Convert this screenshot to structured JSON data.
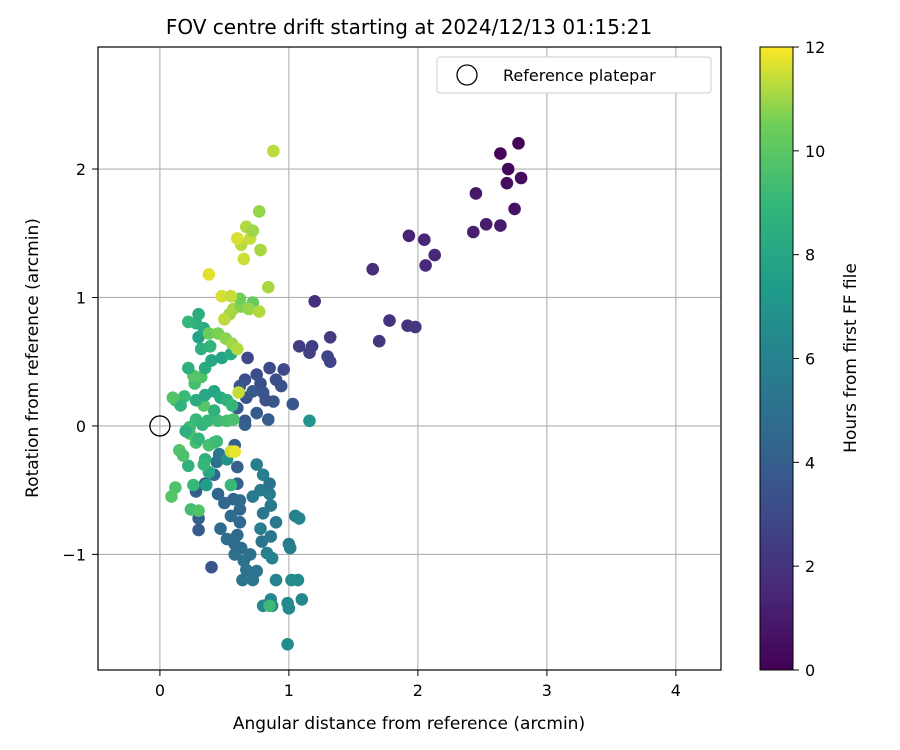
{
  "chart_data": {
    "type": "scatter",
    "title": "FOV centre drift starting at 2024/12/13 01:15:21",
    "xlabel": "Angular distance from reference (arcmin)",
    "ylabel": "Rotation from reference (arcmin)",
    "xlim": [
      -0.48,
      4.35
    ],
    "ylim": [
      -1.9,
      2.95
    ],
    "xticks": [
      0,
      1,
      2,
      3,
      4
    ],
    "yticks": [
      -1,
      0,
      1,
      2
    ],
    "xtick_labels": [
      "0",
      "1",
      "2",
      "3",
      "4"
    ],
    "ytick_labels": [
      "−1",
      "0",
      "1",
      "2"
    ],
    "grid": true,
    "legend": {
      "location": "top-right",
      "entries": [
        "Reference platepar"
      ]
    },
    "reference_point": {
      "x": 0,
      "y": 0
    },
    "colorbar": {
      "label": "Hours from first FF file",
      "colormap": "viridis",
      "range": [
        0,
        12
      ],
      "ticks": [
        0,
        2,
        4,
        6,
        8,
        10,
        12
      ],
      "tick_labels": [
        "0",
        "2",
        "4",
        "6",
        "8",
        "10",
        "12"
      ]
    },
    "series": [
      {
        "points": [
          [
            2.78,
            2.2,
            0.1
          ],
          [
            2.64,
            2.12,
            0.2
          ],
          [
            2.7,
            2.0,
            0.3
          ],
          [
            2.8,
            1.93,
            0.4
          ],
          [
            2.69,
            1.89,
            0.5
          ],
          [
            2.75,
            1.69,
            0.6
          ],
          [
            2.45,
            1.81,
            0.8
          ],
          [
            2.64,
            1.56,
            1.0
          ],
          [
            2.53,
            1.57,
            1.1
          ],
          [
            2.43,
            1.51,
            1.2
          ],
          [
            1.93,
            1.48,
            1.3
          ],
          [
            2.05,
            1.45,
            1.4
          ],
          [
            2.13,
            1.33,
            1.5
          ],
          [
            2.06,
            1.25,
            1.6
          ],
          [
            1.65,
            1.22,
            1.7
          ],
          [
            1.2,
            0.97,
            1.8
          ],
          [
            1.78,
            0.82,
            1.9
          ],
          [
            1.92,
            0.78,
            2.0
          ],
          [
            1.98,
            0.77,
            2.1
          ],
          [
            1.7,
            0.66,
            2.2
          ],
          [
            1.32,
            0.69,
            2.3
          ],
          [
            1.08,
            0.62,
            2.4
          ],
          [
            1.18,
            0.62,
            2.5
          ],
          [
            1.16,
            0.57,
            2.6
          ],
          [
            1.3,
            0.54,
            2.7
          ],
          [
            1.32,
            0.5,
            2.8
          ],
          [
            0.68,
            0.53,
            2.9
          ],
          [
            0.85,
            0.45,
            3.0
          ],
          [
            0.96,
            0.44,
            3.1
          ],
          [
            0.75,
            0.4,
            3.2
          ],
          [
            0.66,
            0.36,
            3.3
          ],
          [
            0.78,
            0.33,
            3.3
          ],
          [
            0.94,
            0.31,
            3.4
          ],
          [
            0.8,
            0.26,
            3.5
          ],
          [
            0.67,
            0.22,
            3.5
          ],
          [
            0.88,
            0.19,
            3.6
          ],
          [
            1.03,
            0.17,
            3.7
          ],
          [
            0.6,
            0.14,
            3.8
          ],
          [
            0.75,
            0.1,
            3.9
          ],
          [
            0.84,
            0.05,
            4.0
          ],
          [
            0.66,
            0.04,
            3.7
          ],
          [
            0.82,
            0.2,
            3.4
          ],
          [
            0.9,
            0.36,
            3.2
          ],
          [
            0.62,
            0.31,
            3.6
          ],
          [
            0.72,
            0.27,
            3.8
          ],
          [
            0.66,
            0.01,
            4.1
          ],
          [
            0.58,
            -0.15,
            4.1
          ],
          [
            0.6,
            -0.32,
            4.2
          ],
          [
            0.6,
            -0.45,
            4.3
          ],
          [
            0.45,
            -0.53,
            4.4
          ],
          [
            0.57,
            -0.57,
            4.4
          ],
          [
            0.5,
            -0.6,
            4.5
          ],
          [
            0.62,
            -0.65,
            4.5
          ],
          [
            0.55,
            -0.7,
            4.6
          ],
          [
            0.62,
            -0.75,
            4.6
          ],
          [
            0.47,
            -0.8,
            4.7
          ],
          [
            0.6,
            -0.85,
            4.7
          ],
          [
            0.52,
            -0.88,
            4.8
          ],
          [
            0.58,
            -0.92,
            4.8
          ],
          [
            0.63,
            -0.95,
            4.9
          ],
          [
            0.58,
            -1.0,
            4.9
          ],
          [
            0.65,
            -1.05,
            5.0
          ],
          [
            0.7,
            -1.0,
            5.0
          ],
          [
            0.4,
            -1.1,
            3.6
          ],
          [
            0.67,
            -1.12,
            5.1
          ],
          [
            0.75,
            -1.13,
            5.1
          ],
          [
            0.64,
            -1.2,
            5.2
          ],
          [
            0.72,
            -1.2,
            5.3
          ],
          [
            0.79,
            -0.9,
            5.2
          ],
          [
            0.86,
            -0.86,
            5.3
          ],
          [
            0.9,
            -0.75,
            5.4
          ],
          [
            0.8,
            -0.68,
            5.4
          ],
          [
            0.86,
            -0.62,
            5.5
          ],
          [
            0.72,
            -0.55,
            5.5
          ],
          [
            0.78,
            -0.5,
            5.6
          ],
          [
            0.85,
            -0.53,
            5.6
          ],
          [
            0.8,
            -0.38,
            5.7
          ],
          [
            0.75,
            -0.3,
            5.8
          ],
          [
            0.85,
            -0.45,
            5.2
          ],
          [
            0.78,
            -0.8,
            5.7
          ],
          [
            0.83,
            -0.99,
            5.9
          ],
          [
            0.87,
            -1.03,
            6.0
          ],
          [
            0.9,
            -1.2,
            6.0
          ],
          [
            0.86,
            -1.35,
            6.1
          ],
          [
            0.8,
            -1.4,
            6.2
          ],
          [
            0.87,
            -1.4,
            6.3
          ],
          [
            0.99,
            -1.38,
            6.3
          ],
          [
            1.0,
            -1.42,
            6.4
          ],
          [
            1.1,
            -1.35,
            6.4
          ],
          [
            1.02,
            -1.2,
            6.5
          ],
          [
            1.07,
            -1.2,
            6.5
          ],
          [
            0.99,
            -1.7,
            6.6
          ],
          [
            1.0,
            -0.92,
            5.5
          ],
          [
            1.01,
            -0.95,
            5.8
          ],
          [
            1.05,
            -0.7,
            5.9
          ],
          [
            1.08,
            -0.72,
            6.1
          ],
          [
            1.16,
            0.04,
            7.0
          ],
          [
            0.3,
            -0.72,
            4.2
          ],
          [
            0.28,
            -0.51,
            4.0
          ],
          [
            0.3,
            -0.81,
            3.9
          ],
          [
            0.35,
            -0.45,
            3.3
          ],
          [
            0.42,
            -0.38,
            4.5
          ],
          [
            0.44,
            -0.28,
            5.0
          ],
          [
            0.46,
            -0.22,
            5.3
          ],
          [
            0.52,
            -0.26,
            6.8
          ],
          [
            0.36,
            -0.46,
            7.5
          ],
          [
            0.38,
            -0.36,
            8.1
          ],
          [
            0.35,
            -0.26,
            8.5
          ],
          [
            0.26,
            -0.46,
            9.0
          ],
          [
            0.42,
            -0.13,
            9.2
          ],
          [
            0.28,
            -0.13,
            9.4
          ],
          [
            0.23,
            -0.06,
            9.5
          ],
          [
            0.3,
            -0.1,
            8.9
          ],
          [
            0.22,
            -0.31,
            8.7
          ],
          [
            0.15,
            -0.19,
            9.8
          ],
          [
            0.18,
            -0.23,
            9.6
          ],
          [
            0.12,
            -0.48,
            9.7
          ],
          [
            0.09,
            -0.55,
            9.9
          ],
          [
            0.23,
            -0.01,
            9.3
          ],
          [
            0.28,
            0.05,
            9.1
          ],
          [
            0.33,
            0.01,
            8.8
          ],
          [
            0.37,
            0.04,
            9.0
          ],
          [
            0.45,
            0.04,
            9.2
          ],
          [
            0.52,
            0.04,
            9.4
          ],
          [
            0.57,
            0.05,
            9.6
          ],
          [
            0.42,
            0.12,
            8.7
          ],
          [
            0.34,
            0.16,
            9.9
          ],
          [
            0.28,
            0.2,
            8.4
          ],
          [
            0.35,
            0.24,
            8.1
          ],
          [
            0.42,
            0.27,
            7.9
          ],
          [
            0.47,
            0.22,
            8.2
          ],
          [
            0.52,
            0.2,
            8.6
          ],
          [
            0.56,
            0.16,
            8.9
          ],
          [
            0.19,
            0.23,
            9.1
          ],
          [
            0.12,
            0.2,
            9.4
          ],
          [
            0.16,
            0.16,
            8.7
          ],
          [
            0.1,
            0.22,
            9.8
          ],
          [
            0.2,
            -0.04,
            8.5
          ],
          [
            0.27,
            0.33,
            9.4
          ],
          [
            0.32,
            0.38,
            9.7
          ],
          [
            0.26,
            0.39,
            9.9
          ],
          [
            0.22,
            0.45,
            8.6
          ],
          [
            0.35,
            0.45,
            8.3
          ],
          [
            0.4,
            0.51,
            8.0
          ],
          [
            0.48,
            0.53,
            7.9
          ],
          [
            0.55,
            0.56,
            8.3
          ],
          [
            0.32,
            0.6,
            8.5
          ],
          [
            0.39,
            0.62,
            8.8
          ],
          [
            0.3,
            0.69,
            7.8
          ],
          [
            0.34,
            0.76,
            8.1
          ],
          [
            0.28,
            0.8,
            8.6
          ],
          [
            0.22,
            0.81,
            8.9
          ],
          [
            0.3,
            0.87,
            8.4
          ],
          [
            0.38,
            0.72,
            10.4
          ],
          [
            0.45,
            0.72,
            10.6
          ],
          [
            0.51,
            0.68,
            10.8
          ],
          [
            0.56,
            0.64,
            11.0
          ],
          [
            0.6,
            0.6,
            11.2
          ],
          [
            0.54,
            0.87,
            11.0
          ],
          [
            0.5,
            0.83,
            11.3
          ],
          [
            0.57,
            0.91,
            11.1
          ],
          [
            0.63,
            0.93,
            10.7
          ],
          [
            0.72,
            0.96,
            10.3
          ],
          [
            0.69,
            0.91,
            10.9
          ],
          [
            0.77,
            0.89,
            11.2
          ],
          [
            0.84,
            1.08,
            11.1
          ],
          [
            0.62,
            0.99,
            10.5
          ],
          [
            0.48,
            1.01,
            11.6
          ],
          [
            0.55,
            1.01,
            11.4
          ],
          [
            0.38,
            1.18,
            11.7
          ],
          [
            0.65,
            1.3,
            11.5
          ],
          [
            0.63,
            1.41,
            11.3
          ],
          [
            0.6,
            1.46,
            11.6
          ],
          [
            0.7,
            1.46,
            11.4
          ],
          [
            0.67,
            1.55,
            11.2
          ],
          [
            0.72,
            1.52,
            11.0
          ],
          [
            0.78,
            1.37,
            11.1
          ],
          [
            0.77,
            1.67,
            10.9
          ],
          [
            0.88,
            2.14,
            11.3
          ],
          [
            0.55,
            -0.2,
            11.5
          ],
          [
            0.58,
            -0.2,
            11.8
          ],
          [
            0.61,
            0.26,
            11.4
          ],
          [
            0.38,
            -0.15,
            9.5
          ],
          [
            0.44,
            -0.12,
            9.2
          ],
          [
            0.34,
            -0.3,
            9.0
          ],
          [
            0.55,
            -0.46,
            9.1
          ],
          [
            0.24,
            -0.65,
            9.4
          ],
          [
            0.3,
            -0.66,
            9.7
          ],
          [
            0.85,
            -1.4,
            9.2
          ],
          [
            0.62,
            -0.58,
            4.6
          ]
        ]
      }
    ]
  }
}
